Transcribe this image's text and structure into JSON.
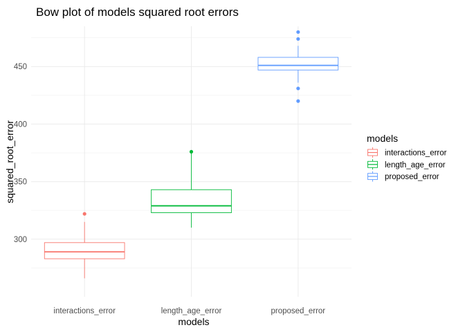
{
  "chart_data": {
    "type": "boxplot",
    "title": "Bow plot of models squared root errors",
    "xlabel": "models",
    "ylabel": "squared_root_error",
    "categories": [
      "interactions_error",
      "length_age_error",
      "proposed_error"
    ],
    "ylim": [
      250,
      485
    ],
    "yticks": [
      300,
      350,
      400,
      450
    ],
    "grid": true,
    "legend": {
      "title": "models",
      "position": "right",
      "entries": [
        "interactions_error",
        "length_age_error",
        "proposed_error"
      ]
    },
    "series": [
      {
        "name": "interactions_error",
        "color": "#F8766D",
        "whisker_low": 266,
        "q1": 283,
        "median": 289,
        "q3": 297,
        "whisker_high": 315,
        "outliers": [
          322
        ]
      },
      {
        "name": "length_age_error",
        "color": "#00BA38",
        "whisker_low": 310,
        "q1": 323,
        "median": 329,
        "q3": 343,
        "whisker_high": 375,
        "outliers": [
          376
        ]
      },
      {
        "name": "proposed_error",
        "color": "#619CFF",
        "whisker_low": 436,
        "q1": 447,
        "median": 451,
        "q3": 458,
        "whisker_high": 468,
        "outliers": [
          420,
          431,
          474,
          480
        ]
      }
    ]
  }
}
